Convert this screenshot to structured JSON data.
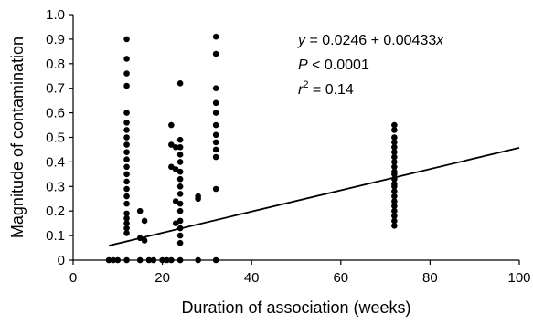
{
  "chart_data": {
    "type": "scatter",
    "title": "",
    "xlabel": "Duration of association (weeks)",
    "ylabel": "Magnitude of contamination",
    "xlim": [
      0,
      100
    ],
    "ylim": [
      0,
      1.0
    ],
    "x_ticks": [
      {
        "value": 0,
        "label": "0"
      },
      {
        "value": 20,
        "label": "20"
      },
      {
        "value": 40,
        "label": "40"
      },
      {
        "value": 60,
        "label": "60"
      },
      {
        "value": 80,
        "label": "80"
      },
      {
        "value": 100,
        "label": "100"
      }
    ],
    "y_ticks": [
      {
        "value": 0,
        "label": "0"
      },
      {
        "value": 0.1,
        "label": "0.1"
      },
      {
        "value": 0.2,
        "label": "0.2"
      },
      {
        "value": 0.3,
        "label": "0.3"
      },
      {
        "value": 0.4,
        "label": "0.4"
      },
      {
        "value": 0.5,
        "label": "0.5"
      },
      {
        "value": 0.6,
        "label": "0.6"
      },
      {
        "value": 0.7,
        "label": "0.7"
      },
      {
        "value": 0.8,
        "label": "0.8"
      },
      {
        "value": 0.9,
        "label": "0.9"
      },
      {
        "value": 1.0,
        "label": "1.0"
      }
    ],
    "grid": false,
    "legend": "none",
    "fit_line": {
      "intercept": 0.0246,
      "slope": 0.00433,
      "x_start": 8,
      "x_end": 100
    },
    "annotation": {
      "equation": {
        "y": "y",
        "eq": " = 0.0246 + 0.00433",
        "x": "x"
      },
      "p_value": {
        "p": "P",
        "rest": " < 0.0001"
      },
      "r_squared": {
        "r": "r",
        "sup": "2",
        "rest": " = 0.14"
      }
    },
    "series": [
      {
        "points": [
          {
            "x": 8,
            "y": 0
          },
          {
            "x": 9,
            "y": 0
          },
          {
            "x": 10,
            "y": 0
          },
          {
            "x": 12,
            "y": 0.9
          },
          {
            "x": 12,
            "y": 0.82
          },
          {
            "x": 12,
            "y": 0.76
          },
          {
            "x": 12,
            "y": 0.71
          },
          {
            "x": 12,
            "y": 0.6
          },
          {
            "x": 12,
            "y": 0.56
          },
          {
            "x": 12,
            "y": 0.53
          },
          {
            "x": 12,
            "y": 0.5
          },
          {
            "x": 12,
            "y": 0.47
          },
          {
            "x": 12,
            "y": 0.44
          },
          {
            "x": 12,
            "y": 0.41
          },
          {
            "x": 12,
            "y": 0.38
          },
          {
            "x": 12,
            "y": 0.35
          },
          {
            "x": 12,
            "y": 0.32
          },
          {
            "x": 12,
            "y": 0.29
          },
          {
            "x": 12,
            "y": 0.26
          },
          {
            "x": 12,
            "y": 0.23
          },
          {
            "x": 12,
            "y": 0.19
          },
          {
            "x": 12,
            "y": 0.17
          },
          {
            "x": 12,
            "y": 0.15
          },
          {
            "x": 12,
            "y": 0.13
          },
          {
            "x": 12,
            "y": 0.11
          },
          {
            "x": 12,
            "y": 0
          },
          {
            "x": 15,
            "y": 0.2
          },
          {
            "x": 15,
            "y": 0.09
          },
          {
            "x": 15,
            "y": 0
          },
          {
            "x": 16,
            "y": 0.16
          },
          {
            "x": 16,
            "y": 0.08
          },
          {
            "x": 17,
            "y": 0
          },
          {
            "x": 18,
            "y": 0
          },
          {
            "x": 20,
            "y": 0
          },
          {
            "x": 21,
            "y": 0
          },
          {
            "x": 22,
            "y": 0.55
          },
          {
            "x": 22,
            "y": 0.47
          },
          {
            "x": 22,
            "y": 0.38
          },
          {
            "x": 22,
            "y": 0
          },
          {
            "x": 23,
            "y": 0.46
          },
          {
            "x": 23,
            "y": 0.37
          },
          {
            "x": 23,
            "y": 0.24
          },
          {
            "x": 23,
            "y": 0.15
          },
          {
            "x": 24,
            "y": 0.72
          },
          {
            "x": 24,
            "y": 0.49
          },
          {
            "x": 24,
            "y": 0.46
          },
          {
            "x": 24,
            "y": 0.43
          },
          {
            "x": 24,
            "y": 0.4
          },
          {
            "x": 24,
            "y": 0.36
          },
          {
            "x": 24,
            "y": 0.33
          },
          {
            "x": 24,
            "y": 0.3
          },
          {
            "x": 24,
            "y": 0.27
          },
          {
            "x": 24,
            "y": 0.23
          },
          {
            "x": 24,
            "y": 0.2
          },
          {
            "x": 24,
            "y": 0.16
          },
          {
            "x": 24,
            "y": 0.13
          },
          {
            "x": 24,
            "y": 0.1
          },
          {
            "x": 24,
            "y": 0.07
          },
          {
            "x": 24,
            "y": 0
          },
          {
            "x": 28,
            "y": 0.26
          },
          {
            "x": 28,
            "y": 0.25
          },
          {
            "x": 28,
            "y": 0
          },
          {
            "x": 32,
            "y": 0.91
          },
          {
            "x": 32,
            "y": 0.84
          },
          {
            "x": 32,
            "y": 0.7
          },
          {
            "x": 32,
            "y": 0.64
          },
          {
            "x": 32,
            "y": 0.6
          },
          {
            "x": 32,
            "y": 0.55
          },
          {
            "x": 32,
            "y": 0.51
          },
          {
            "x": 32,
            "y": 0.48
          },
          {
            "x": 32,
            "y": 0.45
          },
          {
            "x": 32,
            "y": 0.42
          },
          {
            "x": 32,
            "y": 0.29
          },
          {
            "x": 32,
            "y": 0
          },
          {
            "x": 72,
            "y": 0.55
          },
          {
            "x": 72,
            "y": 0.53
          },
          {
            "x": 72,
            "y": 0.5
          },
          {
            "x": 72,
            "y": 0.48
          },
          {
            "x": 72,
            "y": 0.46
          },
          {
            "x": 72,
            "y": 0.44
          },
          {
            "x": 72,
            "y": 0.42
          },
          {
            "x": 72,
            "y": 0.4
          },
          {
            "x": 72,
            "y": 0.38
          },
          {
            "x": 72,
            "y": 0.36
          },
          {
            "x": 72,
            "y": 0.35
          },
          {
            "x": 72,
            "y": 0.33
          },
          {
            "x": 72,
            "y": 0.31
          },
          {
            "x": 72,
            "y": 0.3
          },
          {
            "x": 72,
            "y": 0.28
          },
          {
            "x": 72,
            "y": 0.26
          },
          {
            "x": 72,
            "y": 0.24
          },
          {
            "x": 72,
            "y": 0.22
          },
          {
            "x": 72,
            "y": 0.2
          },
          {
            "x": 72,
            "y": 0.18
          },
          {
            "x": 72,
            "y": 0.16
          },
          {
            "x": 72,
            "y": 0.14
          }
        ]
      }
    ]
  }
}
